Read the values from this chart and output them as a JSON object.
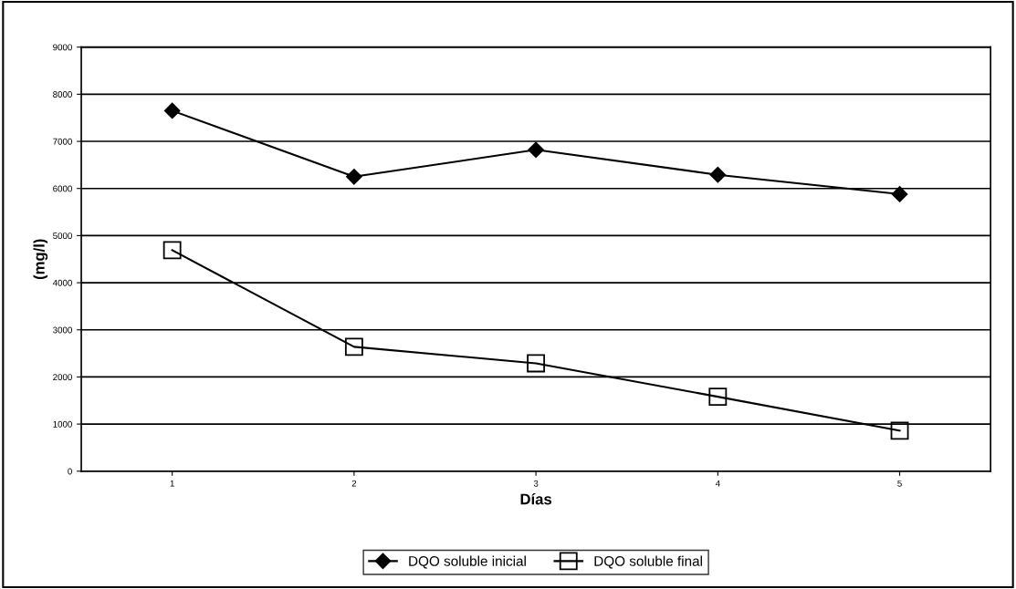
{
  "chart_data": {
    "type": "line",
    "xlabel": "Días",
    "ylabel": "(mg/l)",
    "categories": [
      "1",
      "2",
      "3",
      "4",
      "5"
    ],
    "series": [
      {
        "name": "DQO soluble inicial",
        "color": "#000000",
        "marker": "diamond",
        "values": [
          7650,
          6250,
          6820,
          6290,
          5880
        ]
      },
      {
        "name": "DQO soluble final",
        "color": "#000000",
        "marker": "square",
        "values": [
          4690,
          2640,
          2290,
          1580,
          860
        ]
      }
    ],
    "ylim": [
      0,
      9000
    ],
    "yticks": [
      0,
      1000,
      2000,
      3000,
      4000,
      5000,
      6000,
      7000,
      8000,
      9000
    ],
    "grid": "y",
    "legend": "bottom",
    "line_style": "solid"
  }
}
